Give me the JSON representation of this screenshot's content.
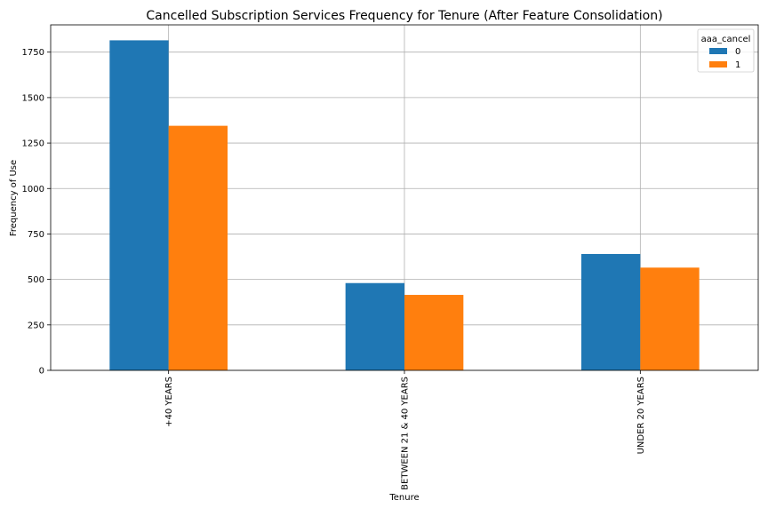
{
  "chart_data": {
    "type": "bar",
    "title": "Cancelled Subscription Services Frequency for Tenure (After Feature Consolidation)",
    "xlabel": "Tenure",
    "ylabel": "Frequency of Use",
    "categories": [
      "+40 YEARS",
      "BETWEEN 21 & 40 YEARS",
      "UNDER 20 YEARS"
    ],
    "series": [
      {
        "name": "0",
        "values": [
          1815,
          480,
          640
        ],
        "color": "#1f77b4"
      },
      {
        "name": "1",
        "values": [
          1345,
          415,
          565
        ],
        "color": "#ff7f0e"
      }
    ],
    "ylim": [
      0,
      1900
    ],
    "yticks": [
      0,
      250,
      500,
      750,
      1000,
      1250,
      1500,
      1750
    ],
    "legend": {
      "title": "aaa_cancel",
      "position": "top-right"
    },
    "grid": true
  }
}
